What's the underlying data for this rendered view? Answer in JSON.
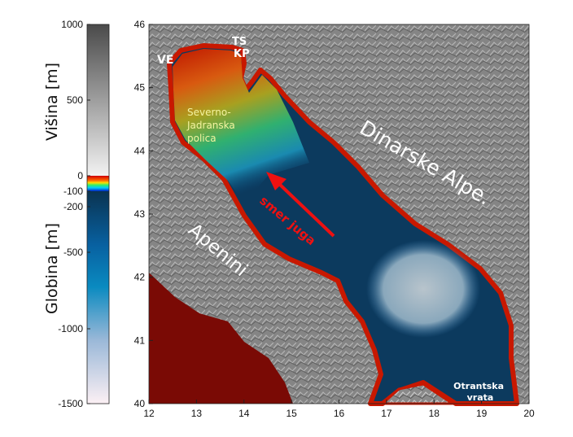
{
  "colorbar": {
    "label_top": "Višina [m]",
    "label_bottom": "Globina [m]",
    "ticks": [
      "1000",
      "500",
      "0",
      "-100",
      "-200",
      "-500",
      "-1000",
      "-1500"
    ],
    "colors": {
      "land_top": "#4a4a4a",
      "land_bottom": "#f2f2f2",
      "shallow": [
        "#d00000",
        "#ffdd00",
        "#33ee66",
        "#00c8ff",
        "#0020c0"
      ],
      "deep_top": "#0a3350",
      "deep_mid": "#0a8ac0",
      "deep_bottom": "#fcf0f4"
    }
  },
  "map": {
    "x_ticks": [
      "12",
      "13",
      "14",
      "15",
      "16",
      "17",
      "18",
      "19",
      "20"
    ],
    "y_ticks": [
      "46",
      "45",
      "44",
      "43",
      "42",
      "41",
      "40"
    ],
    "labels": {
      "ve": "VE",
      "ts": "TS",
      "kp": "KP",
      "shelf": [
        "Severno-",
        "Jadranska",
        "polica"
      ],
      "dinarides": "Dinarske Alpe.",
      "apennines": "Apenini",
      "arrow": "smer juga",
      "otranto": [
        "Otrantska",
        "vrata"
      ]
    },
    "arrow_color": "#ee1111"
  }
}
